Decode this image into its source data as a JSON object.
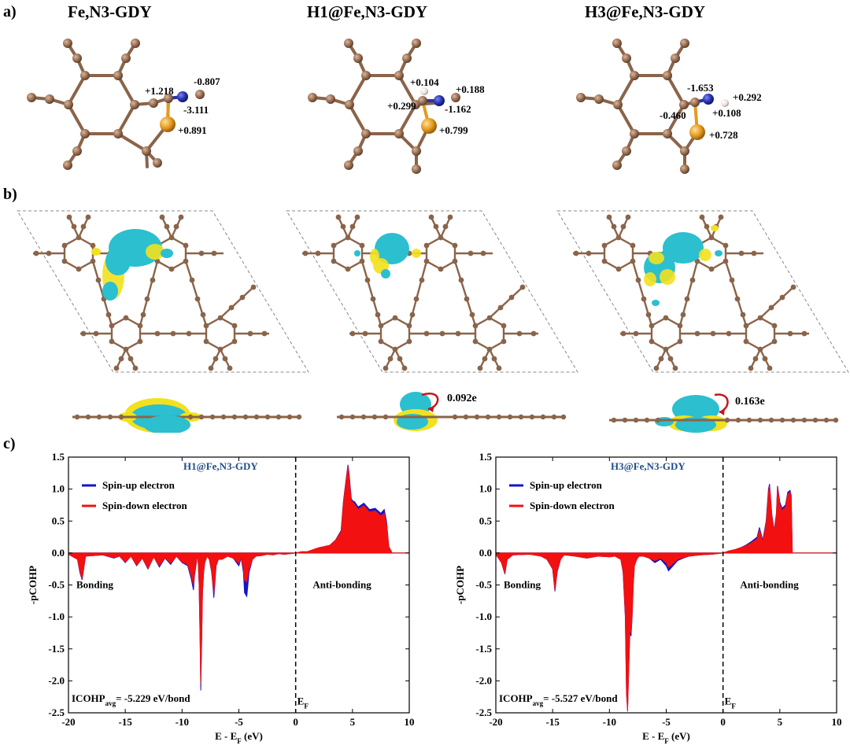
{
  "panels": {
    "a": "a)",
    "b": "b)",
    "c": "c)"
  },
  "structures": [
    {
      "title": "Fe,N3-GDY",
      "charges": [
        "+1.218",
        "-0.807",
        "-3.111",
        "+0.891"
      ]
    },
    {
      "title": "H1@Fe,N3-GDY",
      "charges": [
        "+0.104",
        "+0.188",
        "+0.299",
        "-1.162",
        "+0.799"
      ]
    },
    {
      "title": "H3@Fe,N3-GDY",
      "charges": [
        "-1.653",
        "+0.292",
        "-0.460",
        "+0.108",
        "+0.728"
      ]
    }
  ],
  "transfer": [
    "0.092e",
    "0.163e"
  ],
  "colors": {
    "carbon": "#9a6f52",
    "nitrogen": "#2733b5",
    "iron": "#e59a1f",
    "hydrogen": "#e8dedb",
    "cyan": "#2bbfd0",
    "yellow": "#f2e11e",
    "spin_up": "#1414c8",
    "spin_down": "#f21010",
    "title_blue": "#1f4e8c"
  },
  "chart_data": [
    {
      "type": "area",
      "title": "H1@Fe,N3-GDY",
      "xlabel": "E - E_F (eV)",
      "ylabel": "-pCOHP",
      "xlim": [
        -20,
        10
      ],
      "ylim": [
        -2.5,
        1.5
      ],
      "xticks": [
        "-20",
        "-15",
        "-10",
        "-5",
        "0",
        "5",
        "10"
      ],
      "yticks": [
        "-2.5",
        "-2.0",
        "-1.5",
        "-1.0",
        "-0.5",
        "0.0",
        "0.5",
        "1.0",
        "1.5"
      ],
      "legend": [
        "Spin-up electron",
        "Spin-down electron"
      ],
      "bonding_label": "Bonding",
      "antibonding_label": "Anti-bonding",
      "ef_label": "E",
      "ef_sub": "F",
      "icohp_label": "ICOHP",
      "icohp_sub": "avg",
      "icohp_value": "= -5.229 eV/bond",
      "series": [
        {
          "name": "Spin-up electron",
          "x": [
            -20,
            -19.2,
            -19,
            -18.8,
            -18.5,
            -17,
            -16,
            -15.5,
            -15,
            -14.5,
            -14,
            -13.5,
            -13,
            -12.5,
            -12,
            -11.5,
            -11,
            -10.5,
            -10,
            -9.5,
            -9.2,
            -9,
            -8.9,
            -8.7,
            -8.6,
            -8.5,
            -8.4,
            -8.35,
            -8.3,
            -8.2,
            -8.1,
            -8,
            -7.8,
            -7.6,
            -7.4,
            -7.3,
            -7.2,
            -7.1,
            -7,
            -6.8,
            -6.5,
            -6,
            -5.5,
            -5,
            -4.8,
            -4.6,
            -4.5,
            -4.3,
            -4.1,
            -3.8,
            -3.5,
            -3,
            -2.5,
            -2,
            -1.5,
            -1,
            -0.5,
            0,
            0.5,
            1,
            1.5,
            2,
            2.5,
            3,
            3.5,
            4,
            4.2,
            4.4,
            4.6,
            4.7,
            4.8,
            4.9,
            5,
            5.2,
            5.5,
            6,
            6.5,
            7,
            7.5,
            7.8,
            8,
            8.2,
            8.5,
            10
          ],
          "y": [
            -0.02,
            -0.1,
            -0.3,
            -0.42,
            -0.05,
            -0.03,
            -0.08,
            -0.05,
            -0.15,
            -0.05,
            -0.2,
            -0.08,
            -0.25,
            -0.06,
            -0.22,
            -0.08,
            -0.18,
            -0.05,
            -0.15,
            -0.2,
            -0.4,
            -0.58,
            -0.35,
            -0.1,
            -0.05,
            -0.5,
            -1.5,
            -2.15,
            -1.6,
            -0.6,
            -0.3,
            -0.15,
            -0.05,
            -0.1,
            -0.3,
            -0.48,
            -0.7,
            -0.45,
            -0.2,
            -0.1,
            -0.1,
            -0.05,
            -0.08,
            -0.2,
            -0.08,
            -0.3,
            -0.62,
            -0.68,
            -0.3,
            -0.1,
            -0.05,
            -0.04,
            -0.02,
            -0.03,
            -0.01,
            -0.02,
            -0.01,
            0.0,
            0.02,
            0.02,
            0.05,
            0.08,
            0.1,
            0.12,
            0.2,
            0.35,
            0.8,
            1.1,
            1.38,
            1.25,
            1.05,
            0.85,
            0.82,
            0.8,
            0.72,
            0.78,
            0.68,
            0.7,
            0.62,
            0.68,
            0.5,
            0.1,
            0.0,
            0.0
          ]
        },
        {
          "name": "Spin-down electron",
          "x": [
            -20,
            -19.2,
            -19,
            -18.8,
            -18.5,
            -17,
            -16,
            -15.5,
            -15,
            -14.5,
            -14,
            -13.5,
            -13,
            -12.5,
            -12,
            -11.5,
            -11,
            -10.5,
            -10,
            -9.5,
            -9.2,
            -9,
            -8.9,
            -8.7,
            -8.6,
            -8.5,
            -8.4,
            -8.35,
            -8.3,
            -8.2,
            -8.1,
            -8,
            -7.8,
            -7.6,
            -7.4,
            -7.3,
            -7.2,
            -7.1,
            -7,
            -6.8,
            -6.5,
            -6,
            -5.5,
            -5,
            -4.8,
            -4.6,
            -4.5,
            -4.3,
            -4.1,
            -3.8,
            -3.5,
            -3,
            -2.5,
            -2,
            -1.5,
            -1,
            -0.5,
            0,
            0.5,
            1,
            1.5,
            2,
            2.5,
            3,
            3.5,
            4,
            4.2,
            4.4,
            4.6,
            4.7,
            4.8,
            4.9,
            5,
            5.2,
            5.5,
            6,
            6.5,
            7,
            7.5,
            7.8,
            8,
            8.2,
            8.5,
            10
          ],
          "y": [
            -0.02,
            -0.1,
            -0.28,
            -0.4,
            -0.05,
            -0.03,
            -0.07,
            -0.05,
            -0.14,
            -0.05,
            -0.19,
            -0.08,
            -0.24,
            -0.06,
            -0.2,
            -0.07,
            -0.16,
            -0.05,
            -0.14,
            -0.18,
            -0.35,
            -0.5,
            -0.3,
            -0.1,
            -0.05,
            -0.48,
            -1.45,
            -2.05,
            -1.55,
            -0.58,
            -0.28,
            -0.14,
            -0.05,
            -0.1,
            -0.28,
            -0.45,
            -0.62,
            -0.4,
            -0.18,
            -0.1,
            -0.1,
            -0.05,
            -0.08,
            -0.16,
            -0.07,
            -0.24,
            -0.42,
            -0.45,
            -0.25,
            -0.1,
            -0.05,
            -0.04,
            -0.02,
            -0.03,
            -0.01,
            -0.02,
            -0.01,
            0.0,
            0.02,
            0.02,
            0.05,
            0.08,
            0.1,
            0.12,
            0.2,
            0.33,
            0.78,
            1.08,
            1.35,
            1.2,
            1.0,
            0.82,
            0.8,
            0.76,
            0.68,
            0.74,
            0.64,
            0.66,
            0.58,
            0.62,
            0.46,
            0.1,
            0.0,
            0.0
          ]
        }
      ]
    },
    {
      "type": "area",
      "title": "H3@Fe,N3-GDY",
      "xlabel": "E - E_F (eV)",
      "ylabel": "-pCOHP",
      "xlim": [
        -20,
        10
      ],
      "ylim": [
        -2.5,
        1.5
      ],
      "xticks": [
        "-20",
        "-15",
        "-10",
        "-5",
        "0",
        "5",
        "10"
      ],
      "yticks": [
        "-2.5",
        "-2.0",
        "-1.5",
        "-1.0",
        "-0.5",
        "0.0",
        "0.5",
        "1.0",
        "1.5"
      ],
      "legend": [
        "Spin-up electron",
        "Spin-down electron"
      ],
      "bonding_label": "Bonding",
      "antibonding_label": "Anti-bonding",
      "ef_label": "E",
      "ef_sub": "F",
      "icohp_label": "ICOHP",
      "icohp_sub": "avg",
      "icohp_value": "= -5.527 eV/bond",
      "series": [
        {
          "name": "Spin-up electron",
          "x": [
            -20,
            -19.5,
            -19.2,
            -19,
            -18.5,
            -17,
            -16,
            -15.5,
            -15,
            -14.8,
            -14.6,
            -14.3,
            -14,
            -13,
            -12,
            -11,
            -10,
            -9.5,
            -9,
            -8.8,
            -8.6,
            -8.5,
            -8.4,
            -8.3,
            -8.2,
            -8.1,
            -8,
            -7.9,
            -7.8,
            -7.6,
            -7.4,
            -7,
            -6.5,
            -6,
            -5.5,
            -5,
            -4.8,
            -4.5,
            -4,
            -3.5,
            -3,
            -2,
            -1,
            0,
            0.5,
            1,
            1.5,
            2,
            2.5,
            3,
            3.2,
            3.5,
            3.8,
            4,
            4.1,
            4.3,
            4.5,
            4.7,
            4.8,
            5,
            5.2,
            5.5,
            5.7,
            5.9,
            6,
            6.1,
            10
          ],
          "y": [
            -0.02,
            -0.15,
            -0.33,
            -0.1,
            -0.03,
            -0.02,
            -0.05,
            -0.1,
            -0.25,
            -0.6,
            -0.3,
            -0.1,
            -0.03,
            -0.05,
            -0.08,
            -0.05,
            -0.06,
            -0.05,
            -0.1,
            -0.3,
            -1.0,
            -2.2,
            -2.45,
            -1.8,
            -1.25,
            -1.3,
            -1.0,
            -0.5,
            -0.2,
            -0.1,
            -0.05,
            -0.05,
            -0.08,
            -0.15,
            -0.1,
            -0.2,
            -0.28,
            -0.22,
            -0.12,
            -0.08,
            -0.05,
            -0.03,
            -0.02,
            0.0,
            0.03,
            0.05,
            0.08,
            0.12,
            0.18,
            0.25,
            0.4,
            0.2,
            0.5,
            1.0,
            1.08,
            0.6,
            0.35,
            0.62,
            1.05,
            0.8,
            0.7,
            0.75,
            0.95,
            0.98,
            0.9,
            0.0,
            0.0
          ]
        },
        {
          "name": "Spin-down electron",
          "x": [
            -20,
            -19.5,
            -19.2,
            -19,
            -18.5,
            -17,
            -16,
            -15.5,
            -15,
            -14.8,
            -14.6,
            -14.3,
            -14,
            -13,
            -12,
            -11,
            -10,
            -9.5,
            -9,
            -8.8,
            -8.6,
            -8.5,
            -8.4,
            -8.3,
            -8.2,
            -8.1,
            -8,
            -7.9,
            -7.8,
            -7.6,
            -7.4,
            -7,
            -6.5,
            -6,
            -5.5,
            -5,
            -4.8,
            -4.5,
            -4,
            -3.5,
            -3,
            -2,
            -1,
            0,
            0.5,
            1,
            1.5,
            2,
            2.5,
            3,
            3.2,
            3.5,
            3.8,
            4,
            4.1,
            4.3,
            4.5,
            4.7,
            4.8,
            5,
            5.2,
            5.5,
            5.7,
            5.9,
            6,
            6.1,
            10
          ],
          "y": [
            -0.02,
            -0.15,
            -0.32,
            -0.1,
            -0.03,
            -0.02,
            -0.05,
            -0.1,
            -0.24,
            -0.58,
            -0.28,
            -0.1,
            -0.03,
            -0.05,
            -0.08,
            -0.05,
            -0.06,
            -0.05,
            -0.1,
            -0.28,
            -0.95,
            -2.15,
            -2.48,
            -1.78,
            -1.2,
            -1.25,
            -0.95,
            -0.48,
            -0.2,
            -0.1,
            -0.05,
            -0.05,
            -0.08,
            -0.12,
            -0.08,
            -0.15,
            -0.22,
            -0.18,
            -0.1,
            -0.07,
            -0.05,
            -0.03,
            -0.02,
            0.0,
            0.03,
            0.05,
            0.08,
            0.11,
            0.16,
            0.22,
            0.36,
            0.18,
            0.46,
            0.95,
            1.05,
            0.58,
            0.33,
            0.6,
            1.02,
            0.76,
            0.66,
            0.72,
            0.92,
            0.95,
            0.86,
            0.0,
            0.0
          ]
        }
      ]
    }
  ]
}
